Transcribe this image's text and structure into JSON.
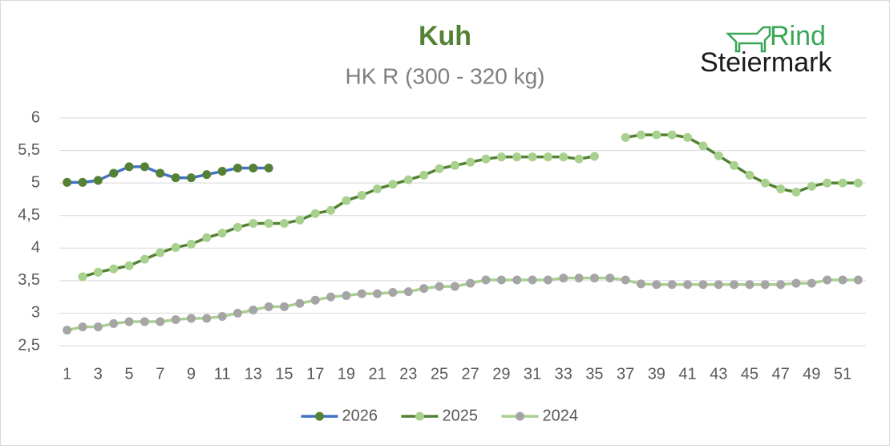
{
  "logo": {
    "top": "Rind",
    "bottom": "Steiermark"
  },
  "chart_data": {
    "type": "line",
    "title": "Kuh",
    "subtitle": "HK R (300 - 320 kg)",
    "categories": [
      "1",
      null,
      "3",
      null,
      "5",
      null,
      "7",
      null,
      "9",
      null,
      "11",
      null,
      "13",
      null,
      "15",
      null,
      "17",
      null,
      "19",
      null,
      "21",
      null,
      "23",
      null,
      "25",
      null,
      "27",
      null,
      "29",
      null,
      "31",
      null,
      "33",
      null,
      "35",
      null,
      "37",
      null,
      "39",
      null,
      "41",
      null,
      "43",
      null,
      "45",
      null,
      "47",
      null,
      "49",
      null,
      "51",
      null
    ],
    "ylim": [
      2.5,
      6
    ],
    "yticks": [
      {
        "value": 2.5,
        "label": "2,5"
      },
      3,
      {
        "value": 3.5,
        "label": "3,5"
      },
      4,
      {
        "value": 4.5,
        "label": "4,5"
      },
      5,
      {
        "value": 5.5,
        "label": "5,5"
      },
      6
    ],
    "grid": true,
    "legend": "bottom",
    "series": [
      {
        "name": "2026",
        "color": "#4472c4",
        "marker_color": "#548235",
        "values": [
          5.01,
          5.01,
          5.04,
          5.15,
          5.25,
          5.25,
          5.15,
          5.08,
          5.08,
          5.13,
          5.18,
          5.23,
          5.23,
          5.23,
          null,
          null,
          null,
          null,
          null,
          null,
          null,
          null,
          null,
          null,
          null,
          null,
          null,
          null,
          null,
          null,
          null,
          null,
          null,
          null,
          null,
          null,
          null,
          null,
          null,
          null,
          null,
          null,
          null,
          null,
          null,
          null,
          null,
          null,
          null,
          null,
          null,
          null
        ]
      },
      {
        "name": "2025",
        "color": "#548235",
        "marker_color": "#a9d18e",
        "values": [
          null,
          3.56,
          3.63,
          3.68,
          3.73,
          3.83,
          3.93,
          4.01,
          4.06,
          4.16,
          4.23,
          4.32,
          4.38,
          4.38,
          4.38,
          4.43,
          4.53,
          4.58,
          4.73,
          4.81,
          4.91,
          4.98,
          5.05,
          5.12,
          5.22,
          5.27,
          5.32,
          5.37,
          5.4,
          5.4,
          5.4,
          5.4,
          5.4,
          5.37,
          5.41,
          null,
          5.7,
          5.74,
          5.74,
          5.74,
          5.7,
          5.57,
          5.42,
          5.27,
          5.12,
          5.0,
          4.91,
          4.86,
          4.95,
          5.0,
          5.0,
          5.0
        ]
      },
      {
        "name": "2024",
        "color": "#a9d18e",
        "marker_color": "#a5a5a5",
        "values": [
          2.74,
          2.79,
          2.79,
          2.84,
          2.87,
          2.87,
          2.87,
          2.9,
          2.92,
          2.92,
          2.95,
          3.0,
          3.05,
          3.1,
          3.1,
          3.15,
          3.2,
          3.25,
          3.27,
          3.3,
          3.3,
          3.32,
          3.33,
          3.38,
          3.41,
          3.41,
          3.46,
          3.51,
          3.51,
          3.51,
          3.51,
          3.51,
          3.54,
          3.54,
          3.54,
          3.54,
          3.51,
          3.45,
          3.44,
          3.44,
          3.44,
          3.44,
          3.44,
          3.44,
          3.44,
          3.44,
          3.44,
          3.46,
          3.46,
          3.51,
          3.51,
          3.51
        ]
      }
    ]
  }
}
